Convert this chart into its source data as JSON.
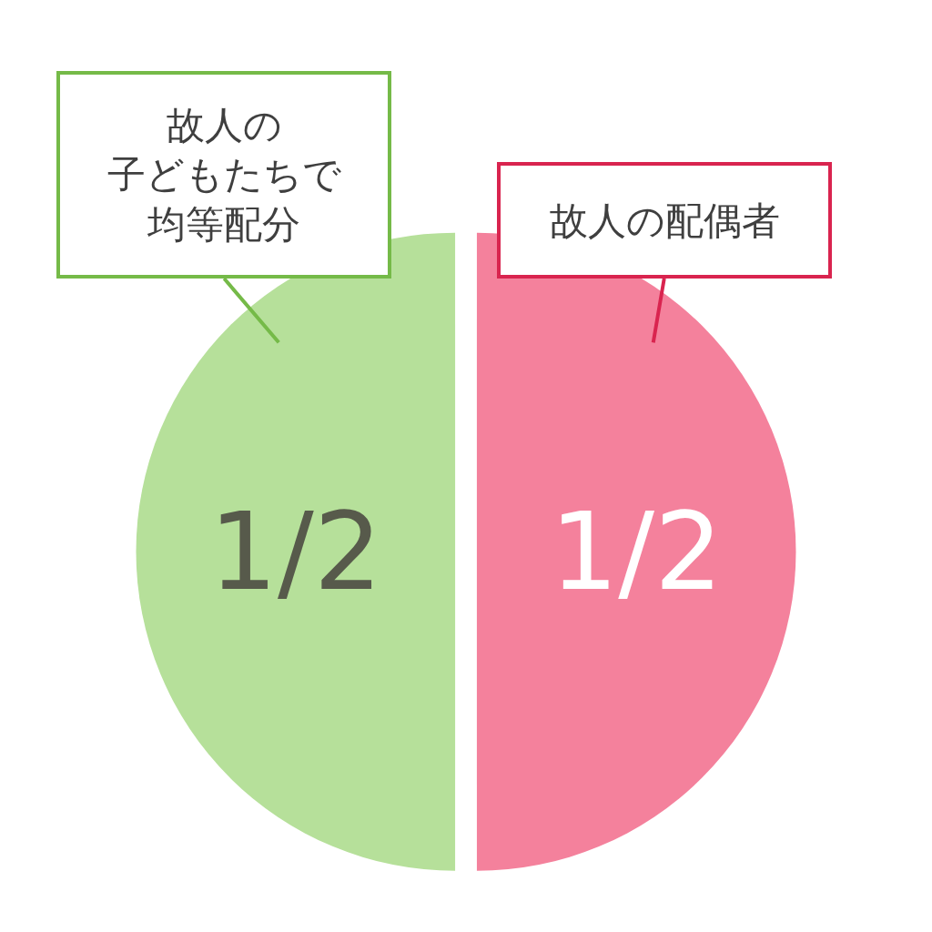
{
  "chart_data": {
    "type": "pie",
    "categories": [
      "故人の子どもたちで均等配分",
      "故人の配偶者"
    ],
    "values": [
      0.5,
      0.5
    ],
    "value_labels": [
      "1/2",
      "1/2"
    ],
    "colors": [
      "#b6e09a",
      "#f4819c"
    ]
  }
}
